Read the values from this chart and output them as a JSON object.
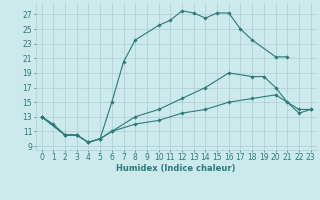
{
  "xlabel": "Humidex (Indice chaleur)",
  "bg_color": "#cce9ec",
  "grid_color": "#aacdd2",
  "line_color": "#2a7a78",
  "xlim": [
    -0.5,
    23.5
  ],
  "ylim": [
    8.5,
    28.5
  ],
  "xticks": [
    0,
    1,
    2,
    3,
    4,
    5,
    6,
    7,
    8,
    9,
    10,
    11,
    12,
    13,
    14,
    15,
    16,
    17,
    18,
    19,
    20,
    21,
    22,
    23
  ],
  "yticks": [
    9,
    11,
    13,
    15,
    17,
    19,
    21,
    23,
    25,
    27
  ],
  "series": [
    {
      "x": [
        0,
        1,
        2,
        3,
        4,
        5,
        6,
        7,
        8,
        10,
        11,
        12,
        13,
        14,
        15,
        16,
        17,
        18,
        20,
        21
      ],
      "y": [
        13,
        12,
        10.5,
        10.5,
        9.5,
        10,
        15,
        20.5,
        23.5,
        25.5,
        26.2,
        27.5,
        27.2,
        26.5,
        27.2,
        27.2,
        25,
        23.5,
        21.2,
        21.2
      ]
    },
    {
      "x": [
        0,
        2,
        3,
        4,
        5,
        6,
        8,
        10,
        12,
        14,
        16,
        18,
        19,
        20,
        21,
        22,
        23
      ],
      "y": [
        13,
        10.5,
        10.5,
        9.5,
        10,
        11,
        13,
        14,
        15.5,
        17,
        19,
        18.5,
        18.5,
        17,
        15,
        13.5,
        14
      ]
    },
    {
      "x": [
        0,
        2,
        3,
        4,
        5,
        6,
        8,
        10,
        12,
        14,
        16,
        18,
        20,
        22,
        23
      ],
      "y": [
        13,
        10.5,
        10.5,
        9.5,
        10,
        11,
        12,
        12.5,
        13.5,
        14,
        15,
        15.5,
        16,
        14,
        14
      ]
    }
  ]
}
